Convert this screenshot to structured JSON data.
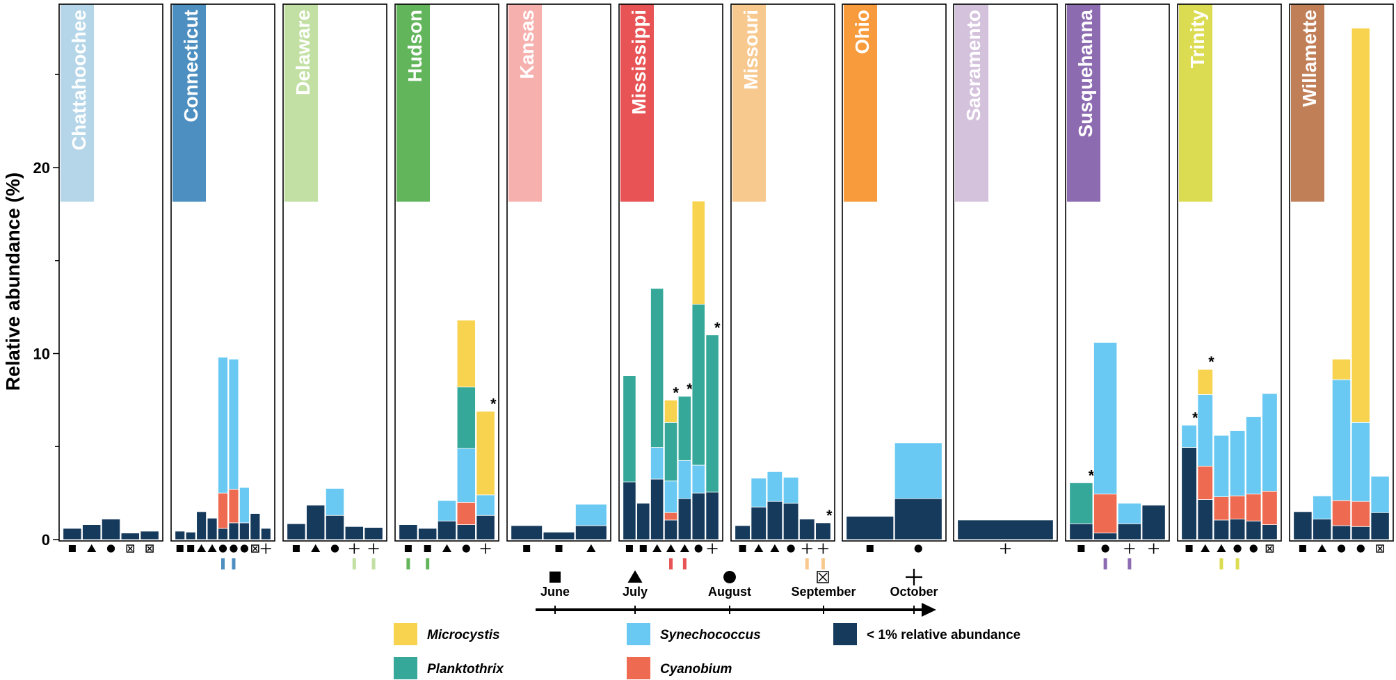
{
  "colors": {
    "microcystis": "#f8d350",
    "synechococcus": "#69c9f2",
    "low": "#163a5c",
    "planktothrix": "#35a89a",
    "cyanobium": "#ee6a50"
  },
  "chart_data": {
    "type": "bar",
    "stacked": true,
    "ylabel": "Relative abundance (%)",
    "ylim": [
      0,
      29
    ],
    "yticks": [
      "0",
      "10",
      "20"
    ],
    "series": [
      {
        "key": "low",
        "name": "< 1% relative abundance"
      },
      {
        "key": "cyanobium",
        "name": "Cyanobium"
      },
      {
        "key": "synechococcus",
        "name": "Synechococcus"
      },
      {
        "key": "planktothrix",
        "name": "Planktothrix"
      },
      {
        "key": "microcystis",
        "name": "Microcystis"
      }
    ],
    "legend": [
      {
        "key": "microcystis",
        "label": "Microcystis",
        "italic": true
      },
      {
        "key": "synechococcus",
        "label": "Synechococcus",
        "italic": true
      },
      {
        "key": "low",
        "label": "< 1% relative abundance",
        "italic": false
      },
      {
        "key": "planktothrix",
        "label": "Planktothrix",
        "italic": true
      },
      {
        "key": "cyanobium",
        "label": "Cyanobium",
        "italic": true
      }
    ],
    "timeline": {
      "months": [
        {
          "label": "June",
          "symbol": "square"
        },
        {
          "label": "July",
          "symbol": "triangle"
        },
        {
          "label": "August",
          "symbol": "circle"
        },
        {
          "label": "September",
          "symbol": "boxx"
        },
        {
          "label": "October",
          "symbol": "plus"
        }
      ]
    },
    "panels": [
      {
        "river": "Chattahoochee",
        "color": "#b5d6e8",
        "bars": [
          {
            "symbol": "square",
            "low": 0.6
          },
          {
            "symbol": "triangle",
            "low": 0.8
          },
          {
            "symbol": "circle",
            "low": 1.1
          },
          {
            "symbol": "boxx",
            "low": 0.35
          },
          {
            "symbol": "boxx",
            "low": 0.45
          }
        ]
      },
      {
        "river": "Connecticut",
        "color": "#4d8fc0",
        "pairs": [
          5,
          6
        ],
        "bars": [
          {
            "symbol": "square",
            "low": 0.45
          },
          {
            "symbol": "square",
            "low": 0.4
          },
          {
            "symbol": "triangle",
            "low": 1.5
          },
          {
            "symbol": "triangle",
            "low": 1.15
          },
          {
            "symbol": "circle",
            "low": 0.6,
            "cyanobium": 1.9,
            "synechococcus": 7.3
          },
          {
            "symbol": "circle",
            "low": 0.9,
            "cyanobium": 1.8,
            "synechococcus": 7.0
          },
          {
            "symbol": "circle",
            "low": 0.9,
            "synechococcus": 1.9
          },
          {
            "symbol": "boxx",
            "low": 1.4
          },
          {
            "symbol": "plus",
            "low": 0.6
          }
        ]
      },
      {
        "river": "Delaware",
        "color": "#c2e0a3",
        "pairs": [
          4,
          5
        ],
        "bars": [
          {
            "symbol": "square",
            "low": 0.85
          },
          {
            "symbol": "triangle",
            "low": 1.85
          },
          {
            "symbol": "circle",
            "low": 1.3,
            "synechococcus": 1.45
          },
          {
            "symbol": "plus",
            "low": 0.7
          },
          {
            "symbol": "plus",
            "low": 0.65
          }
        ]
      },
      {
        "river": "Hudson",
        "color": "#63b55c",
        "pairs": [
          1,
          2
        ],
        "bars": [
          {
            "symbol": "square",
            "low": 0.8
          },
          {
            "symbol": "square",
            "low": 0.6
          },
          {
            "symbol": "triangle",
            "low": 1.0,
            "synechococcus": 1.1
          },
          {
            "symbol": "circle",
            "low": 0.8,
            "cyanobium": 1.2,
            "synechococcus": 2.9,
            "planktothrix": 3.3,
            "microcystis": 3.6
          },
          {
            "symbol": "plus",
            "low": 1.3,
            "synechococcus": 1.1,
            "microcystis": 4.5,
            "star": true
          }
        ]
      },
      {
        "river": "Kansas",
        "color": "#f6b0ae",
        "bars": [
          {
            "symbol": "square",
            "low": 0.75
          },
          {
            "symbol": "square",
            "low": 0.4
          },
          {
            "symbol": "triangle",
            "low": 0.75,
            "synechococcus": 1.15
          }
        ]
      },
      {
        "river": "Mississippi",
        "color": "#e85355",
        "pairs": [
          4,
          5
        ],
        "bars": [
          {
            "symbol": "square",
            "low": 3.1,
            "planktothrix": 5.7
          },
          {
            "symbol": "square",
            "low": 1.95
          },
          {
            "symbol": "triangle",
            "low": 3.25,
            "synechococcus": 1.7,
            "planktothrix": 8.55
          },
          {
            "symbol": "triangle",
            "low": 1.05,
            "cyanobium": 0.4,
            "synechococcus": 1.7,
            "planktothrix": 3.15,
            "microcystis": 1.2,
            "star": true
          },
          {
            "symbol": "triangle",
            "low": 2.2,
            "synechococcus": 2.05,
            "planktothrix": 3.45,
            "star": true
          },
          {
            "symbol": "circle",
            "low": 2.5,
            "synechococcus": 1.5,
            "planktothrix": 8.65,
            "microcystis": 5.55
          },
          {
            "symbol": "plus",
            "low": 2.55,
            "planktothrix": 8.45,
            "star": true
          }
        ]
      },
      {
        "river": "Missouri",
        "color": "#f8c98e",
        "pairs": [
          5,
          6
        ],
        "bars": [
          {
            "symbol": "square",
            "low": 0.75
          },
          {
            "symbol": "triangle",
            "low": 1.75,
            "synechococcus": 1.55
          },
          {
            "symbol": "triangle",
            "low": 2.05,
            "synechococcus": 1.6
          },
          {
            "symbol": "circle",
            "low": 1.95,
            "synechococcus": 1.4
          },
          {
            "symbol": "plus",
            "low": 1.1
          },
          {
            "symbol": "plus",
            "low": 0.9,
            "star": true
          }
        ]
      },
      {
        "river": "Ohio",
        "color": "#f89b3c",
        "bars": [
          {
            "symbol": "square",
            "low": 1.25
          },
          {
            "symbol": "circle",
            "low": 2.2,
            "synechococcus": 3.0
          }
        ]
      },
      {
        "river": "Sacramento",
        "color": "#d4c2dd",
        "bars": [
          {
            "symbol": "plus",
            "low": 1.05
          }
        ]
      },
      {
        "river": "Susquehanna",
        "color": "#8c6bb1",
        "pairs": [
          2,
          3
        ],
        "bars": [
          {
            "symbol": "square",
            "low": 0.85,
            "planktothrix": 2.2,
            "star": true
          },
          {
            "symbol": "circle",
            "low": 0.35,
            "cyanobium": 2.1,
            "synechococcus": 8.15
          },
          {
            "symbol": "plus",
            "low": 0.85,
            "synechococcus": 1.1
          },
          {
            "symbol": "plus",
            "low": 1.85
          }
        ]
      },
      {
        "river": "Trinity",
        "color": "#dcdc52",
        "pairs": [
          3,
          4
        ],
        "bars": [
          {
            "symbol": "square",
            "low": 4.95,
            "synechococcus": 1.2,
            "star": true
          },
          {
            "symbol": "triangle",
            "low": 2.15,
            "cyanobium": 1.8,
            "synechococcus": 3.85,
            "microcystis": 1.35,
            "star": true
          },
          {
            "symbol": "triangle",
            "low": 1.05,
            "cyanobium": 1.25,
            "synechococcus": 3.3
          },
          {
            "symbol": "circle",
            "low": 1.1,
            "cyanobium": 1.25,
            "synechococcus": 3.5
          },
          {
            "symbol": "circle",
            "low": 1.0,
            "cyanobium": 1.45,
            "synechococcus": 4.15
          },
          {
            "symbol": "boxx",
            "low": 0.8,
            "cyanobium": 1.8,
            "synechococcus": 5.25
          }
        ]
      },
      {
        "river": "Willamette",
        "color": "#c17f58",
        "bars": [
          {
            "symbol": "square",
            "low": 1.5
          },
          {
            "symbol": "triangle",
            "low": 1.1,
            "synechococcus": 1.25
          },
          {
            "symbol": "circle",
            "low": 0.75,
            "cyanobium": 1.35,
            "synechococcus": 6.5,
            "microcystis": 1.1
          },
          {
            "symbol": "circle",
            "low": 0.7,
            "cyanobium": 1.35,
            "synechococcus": 4.25,
            "microcystis": 21.2
          },
          {
            "symbol": "boxx",
            "low": 1.45,
            "synechococcus": 1.95
          }
        ]
      }
    ]
  }
}
